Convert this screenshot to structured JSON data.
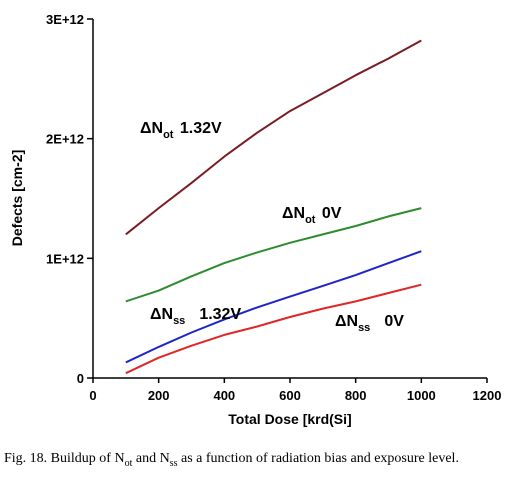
{
  "chart_data": {
    "type": "line",
    "xlabel": "Total Dose [krd(Si]",
    "ylabel": "Defects [cm-2]",
    "xlim": [
      0,
      1200
    ],
    "ylim": [
      0,
      3000000000000.0
    ],
    "x_ticks": [
      "0",
      "200",
      "400",
      "600",
      "800",
      "1000",
      "1200"
    ],
    "y_ticks": [
      "0",
      "1E+12",
      "2E+12",
      "3E+12"
    ],
    "grid": false,
    "legend": "none",
    "series": [
      {
        "name_main": "ΔN",
        "name_sub": "ot",
        "name_suffix": " 1.32V",
        "color": "#7a1d22",
        "x": [
          100,
          200,
          300,
          400,
          500,
          600,
          700,
          800,
          900,
          1000
        ],
        "y": [
          1200000000000.0,
          1420000000000.0,
          1630000000000.0,
          1850000000000.0,
          2050000000000.0,
          2230000000000.0,
          2380000000000.0,
          2530000000000.0,
          2670000000000.0,
          2820000000000.0
        ]
      },
      {
        "name_main": "ΔN",
        "name_sub": "ot",
        "name_suffix": " 0V",
        "color": "#2e8b2e",
        "x": [
          100,
          200,
          300,
          400,
          500,
          600,
          700,
          800,
          900,
          1000
        ],
        "y": [
          640000000000.0,
          730000000000.0,
          850000000000.0,
          960000000000.0,
          1050000000000.0,
          1130000000000.0,
          1200000000000.0,
          1270000000000.0,
          1350000000000.0,
          1420000000000.0
        ]
      },
      {
        "name_main": "ΔN",
        "name_sub": "ss",
        "name_suffix": "1.32V",
        "color": "#1f24c8",
        "x": [
          100,
          200,
          300,
          400,
          500,
          600,
          700,
          800,
          900,
          1000
        ],
        "y": [
          130000000000.0,
          260000000000.0,
          380000000000.0,
          490000000000.0,
          590000000000.0,
          680000000000.0,
          770000000000.0,
          860000000000.0,
          960000000000.0,
          1060000000000.0
        ]
      },
      {
        "name_main": "ΔN",
        "name_sub": "ss",
        "name_suffix": "0V",
        "color": "#e02626",
        "x": [
          100,
          200,
          300,
          400,
          500,
          600,
          700,
          800,
          900,
          1000
        ],
        "y": [
          40000000000.0,
          170000000000.0,
          270000000000.0,
          360000000000.0,
          430000000000.0,
          510000000000.0,
          580000000000.0,
          640000000000.0,
          710000000000.0,
          780000000000.0
        ]
      }
    ]
  },
  "caption": {
    "prefix": "Fig. 18.   Buildup of N",
    "sub1": "ot",
    "mid": " and N",
    "sub2": "ss",
    "suffix": " as a function of radiation bias and exposure level."
  }
}
